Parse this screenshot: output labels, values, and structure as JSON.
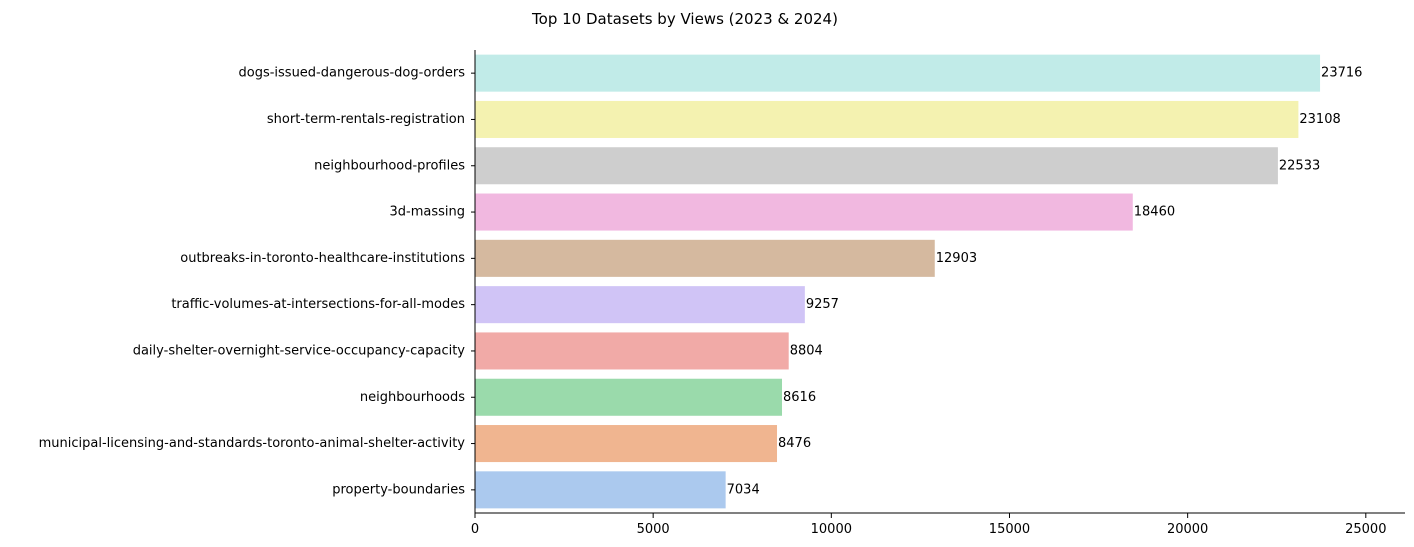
{
  "chart_data": {
    "type": "bar",
    "orientation": "horizontal",
    "title": "Top 10 Datasets by Views (2023 & 2024)",
    "xlabel": "",
    "ylabel": "",
    "xlim": [
      0,
      26100
    ],
    "xticks": [
      0,
      5000,
      10000,
      15000,
      20000,
      25000
    ],
    "grid": false,
    "legend": false,
    "categories": [
      "dogs-issued-dangerous-dog-orders",
      "short-term-rentals-registration",
      "neighbourhood-profiles",
      "3d-massing",
      "outbreaks-in-toronto-healthcare-institutions",
      "traffic-volumes-at-intersections-for-all-modes",
      "daily-shelter-overnight-service-occupancy-capacity",
      "neighbourhoods",
      "municipal-licensing-and-standards-toronto-animal-shelter-activity",
      "property-boundaries"
    ],
    "values": [
      23716,
      23108,
      22533,
      18460,
      12903,
      9257,
      8804,
      8616,
      8476,
      7034
    ],
    "colors": [
      "#c1ebe8",
      "#f4f2b0",
      "#cecece",
      "#f1b8e0",
      "#d5b99f",
      "#d0c4f6",
      "#f1aaa7",
      "#9adaab",
      "#f0b590",
      "#abc9ee"
    ]
  }
}
